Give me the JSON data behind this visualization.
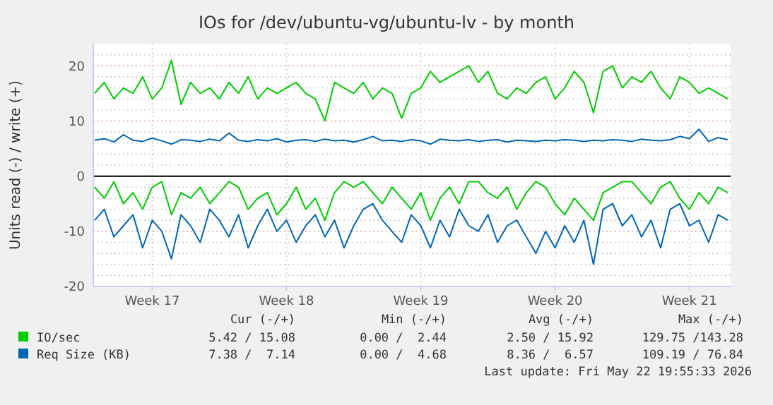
{
  "chart_data": {
    "type": "line",
    "title": "IOs for /dev/ubuntu-vg/ubuntu-lv - by month",
    "ylabel": "Units read (-) / write (+)",
    "categories": [
      null,
      null,
      null,
      null,
      null,
      null,
      "Week 17",
      null,
      null,
      null,
      null,
      null,
      null,
      null,
      null,
      null,
      null,
      null,
      null,
      null,
      "Week 18",
      null,
      null,
      null,
      null,
      null,
      null,
      null,
      null,
      null,
      null,
      null,
      null,
      null,
      "Week 19",
      null,
      null,
      null,
      null,
      null,
      null,
      null,
      null,
      null,
      null,
      null,
      null,
      null,
      "Week 20",
      null,
      null,
      null,
      null,
      null,
      null,
      null,
      null,
      null,
      null,
      null,
      null,
      null,
      "Week 21",
      null,
      null,
      null,
      null
    ],
    "series": [
      {
        "name": "IO/sec",
        "color": "#00cc00",
        "values": [
          15,
          17,
          14,
          16,
          15,
          18,
          14,
          16,
          21,
          13,
          17,
          15,
          16,
          14,
          17,
          15,
          18,
          14,
          16,
          15,
          16,
          17,
          15,
          14,
          10,
          17,
          16,
          15,
          17,
          14,
          16,
          15,
          10.5,
          15,
          16,
          19,
          17,
          18,
          19,
          20,
          17,
          19,
          15,
          14,
          16,
          15,
          17,
          18,
          14,
          16,
          19,
          17,
          11.5,
          19,
          20,
          16,
          18,
          17,
          19,
          16,
          14,
          18,
          17,
          15,
          16,
          15,
          14
        ]
      },
      {
        "color": "#00cc00",
        "values": [
          -2,
          -4,
          -1,
          -5,
          -3,
          -6,
          -2,
          -1,
          -7,
          -3,
          -4,
          -2,
          -5,
          -3,
          -1,
          -2,
          -6,
          -4,
          -3,
          -7,
          -5,
          -2,
          -6,
          -4,
          -8,
          -3,
          -1,
          -2,
          -1,
          -3,
          -5,
          -2,
          -4,
          -6,
          -3,
          -8,
          -4,
          -2,
          -5,
          -1,
          -1,
          -3,
          -4,
          -2,
          -6,
          -3,
          -1,
          -2,
          -5,
          -7,
          -4,
          -6,
          -8,
          -3,
          -2,
          -1,
          -1,
          -3,
          -5,
          -2,
          -1,
          -4,
          -6,
          -3,
          -5,
          -2,
          -3
        ]
      },
      {
        "name": "Req Size (KB)",
        "color": "#0066b3",
        "values": [
          6.5,
          6.8,
          6.2,
          7.5,
          6.5,
          6.3,
          6.9,
          6.4,
          5.8,
          6.6,
          6.5,
          6.3,
          6.7,
          6.4,
          7.8,
          6.5,
          6.3,
          6.6,
          6.4,
          6.8,
          6.2,
          6.5,
          6.6,
          6.3,
          6.7,
          6.4,
          6.5,
          6.2,
          6.6,
          7.2,
          6.4,
          6.5,
          6.3,
          6.6,
          6.4,
          5.8,
          6.7,
          6.5,
          6.4,
          6.6,
          6.3,
          6.5,
          6.6,
          6.2,
          6.5,
          6.4,
          6.3,
          6.5,
          6.4,
          6.6,
          6.5,
          6.3,
          6.5,
          6.4,
          6.6,
          6.5,
          6.3,
          6.7,
          6.5,
          6.4,
          6.6,
          7.2,
          6.8,
          8.5,
          6.3,
          7.0,
          6.6
        ]
      },
      {
        "color": "#0066b3",
        "values": [
          -8,
          -6,
          -11,
          -9,
          -7,
          -13,
          -8,
          -10,
          -15,
          -7,
          -9,
          -12,
          -6,
          -8,
          -11,
          -7,
          -13,
          -9,
          -6,
          -10,
          -8,
          -12,
          -9,
          -7,
          -11,
          -8,
          -13,
          -9,
          -6,
          -5,
          -8,
          -10,
          -12,
          -7,
          -9,
          -13,
          -8,
          -11,
          -6,
          -9,
          -10,
          -7,
          -12,
          -9,
          -8,
          -11,
          -14,
          -10,
          -13,
          -9,
          -12,
          -8,
          -16,
          -6,
          -5,
          -9,
          -7,
          -11,
          -8,
          -13,
          -6,
          -5,
          -9,
          -8,
          -12,
          -7,
          -8
        ]
      }
    ],
    "ylim": [
      -20,
      24
    ],
    "yticks": [
      -20,
      {
        "value": -18,
        "label": null
      },
      {
        "value": -16,
        "label": null
      },
      {
        "value": -14,
        "label": null
      },
      {
        "value": -12,
        "label": null
      },
      -10,
      {
        "value": -8,
        "label": null
      },
      {
        "value": -6,
        "label": null
      },
      {
        "value": -4,
        "label": null
      },
      {
        "value": -2,
        "label": null
      },
      0,
      {
        "value": 2,
        "label": null
      },
      {
        "value": 4,
        "label": null
      },
      {
        "value": 6,
        "label": null
      },
      {
        "value": 8,
        "label": null
      },
      10,
      {
        "value": 12,
        "label": null
      },
      {
        "value": 14,
        "label": null
      },
      {
        "value": 16,
        "label": null
      },
      {
        "value": 18,
        "label": null
      },
      20,
      {
        "value": 22,
        "label": null
      }
    ],
    "grid": true,
    "ref_lines": [
      {
        "axis": "y",
        "value": 0,
        "color": "#000000"
      }
    ],
    "legend": "bottom",
    "annotations": [
      "Cur (-/+)",
      "Min (-/+)",
      "Avg (-/+)",
      "Max (-/+)",
      "5.42 / 15.08",
      "0.00 /  2.44",
      "2.50 / 15.92",
      "129.75 /143.28",
      "7.38 /  7.14",
      "0.00 /  4.68",
      "8.36 /  6.57",
      "109.19 / 76.84",
      "Last update: Fri May 22 19:55:33 2026"
    ]
  }
}
